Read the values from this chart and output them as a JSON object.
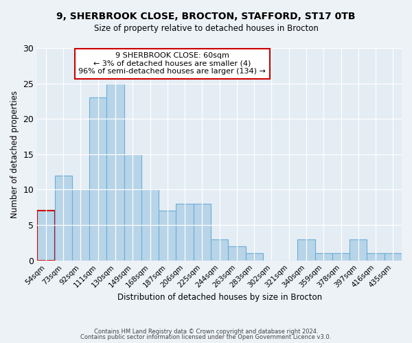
{
  "title_line1": "9, SHERBROOK CLOSE, BROCTON, STAFFORD, ST17 0TB",
  "title_line2": "Size of property relative to detached houses in Brocton",
  "xlabel": "Distribution of detached houses by size in Brocton",
  "ylabel": "Number of detached properties",
  "categories": [
    "54sqm",
    "73sqm",
    "92sqm",
    "111sqm",
    "130sqm",
    "149sqm",
    "168sqm",
    "187sqm",
    "206sqm",
    "225sqm",
    "244sqm",
    "263sqm",
    "283sqm",
    "302sqm",
    "321sqm",
    "340sqm",
    "359sqm",
    "378sqm",
    "397sqm",
    "416sqm",
    "435sqm"
  ],
  "bar_values": [
    7,
    12,
    10,
    23,
    25,
    15,
    10,
    7,
    8,
    8,
    3,
    2,
    1,
    0,
    0,
    3,
    1,
    1,
    3,
    1,
    1
  ],
  "highlight_bar_index": 0,
  "bar_color": "#b8d4e8",
  "highlight_edge_color": "#cc0000",
  "normal_edge_color": "#6aaed6",
  "annotation_box_edge_color": "#cc0000",
  "annotation_text_line1": "9 SHERBROOK CLOSE: 60sqm",
  "annotation_text_line2": "← 3% of detached houses are smaller (4)",
  "annotation_text_line3": "96% of semi-detached houses are larger (134) →",
  "ylim": [
    0,
    30
  ],
  "yticks": [
    0,
    5,
    10,
    15,
    20,
    25,
    30
  ],
  "footer_line1": "Contains HM Land Registry data © Crown copyright and database right 2024.",
  "footer_line2": "Contains public sector information licensed under the Open Government Licence v3.0.",
  "bg_color": "#edf2f7",
  "plot_bg_color": "#e4ecf4"
}
